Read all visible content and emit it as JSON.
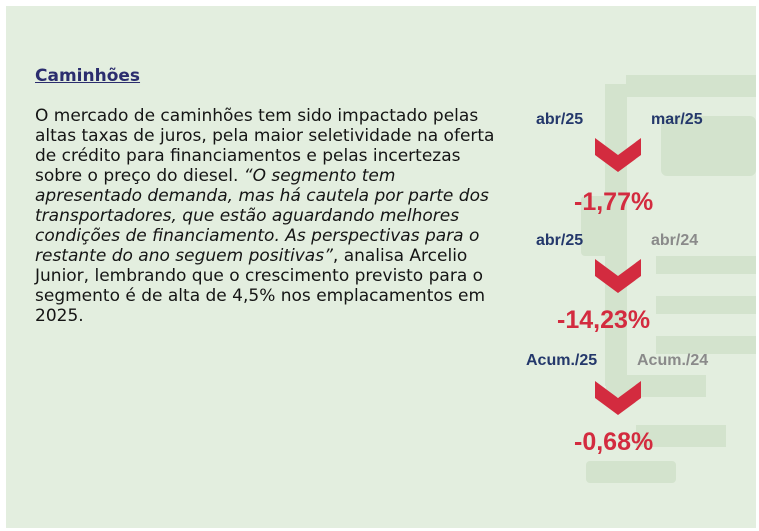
{
  "section": {
    "title": "Caminhões",
    "paragraph_intro": "O mercado de caminhões tem sido impactado pelas altas taxas de juros, pela maior seletividade na oferta de crédito para financiamentos e pelas incertezas sobre o preço do diesel. ",
    "quote": "“O segmento tem apresentado demanda, mas há cautela por parte dos transportadores, que estão aguardando melhores condições de financiamento. As perspectivas para o restante do ano seguem positivas”",
    "paragraph_outro": ", analisa Arcelio Junior, lembrando que o crescimento previsto para o segmento é de alta de 4,5% nos emplacamentos em 2025."
  },
  "comparisons": [
    {
      "current": "abr/25",
      "reference": "mar/25",
      "change": "-1,77%",
      "trend": "down"
    },
    {
      "current": "abr/25",
      "reference": "abr/24",
      "change": "-14,23%",
      "trend": "down"
    },
    {
      "current": "Acum./25",
      "reference": "Acum./24",
      "change": "-0,68%",
      "trend": "down"
    }
  ],
  "colors": {
    "background": "#e3eedf",
    "heading": "#2b2d6e",
    "period_current": "#24386b",
    "period_reference": "#8a8a8a",
    "negative": "#d32b3f"
  },
  "icons": {
    "background": "truck-icon",
    "trend": "chevron-down-icon"
  }
}
